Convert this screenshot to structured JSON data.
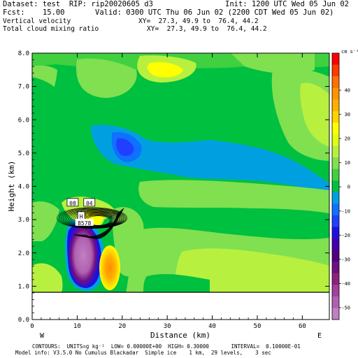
{
  "header": {
    "dataset": "Dataset: test  RIP: rip20020605 d3",
    "init": "Init: 1200 UTC Wed 05 Jun 02",
    "fcst": "Fcst:    15.00",
    "valid": "Valid: 0300 UTC Thu 06 Jun 02 (2200 CDT Wed 05 Jun 02)",
    "field1": "Vertical velocity",
    "field1_xy": "XY=  27.3, 49.9 to  76.4, 44.2",
    "field2": "Total cloud mixing ratio",
    "field2_xy": "XY=  27.3, 49.9 to  76.4, 44.2"
  },
  "chart_data": {
    "type": "heatmap",
    "xlabel": "Distance (km)",
    "ylabel": "Height (km)",
    "xlim": [
      0,
      66
    ],
    "ylim": [
      0,
      8
    ],
    "x_ticks": [
      "0",
      "10",
      "20",
      "30",
      "40",
      "50",
      "60"
    ],
    "y_ticks": [
      "0.0",
      "1.0",
      "2.0",
      "3.0",
      "4.0",
      "5.0",
      "6.0",
      "7.0",
      "8.0"
    ],
    "left_end_label": "W",
    "right_end_label": "E",
    "colorbar": {
      "unit": "cm s⁻¹",
      "tick_labels": [
        "40",
        "30",
        "20",
        "10",
        "0",
        "-10",
        "-20",
        "-30",
        "-40",
        "-50"
      ],
      "colors": [
        "#ff0000",
        "#ff3a00",
        "#ff7000",
        "#ff9400",
        "#ffb000",
        "#ffd200",
        "#ffff00",
        "#e0ff10",
        "#b8f040",
        "#80e050",
        "#40d040",
        "#00c040",
        "#00a0e0",
        "#1070ff",
        "#2040ff",
        "#2010e0",
        "#4000b0",
        "#500080",
        "#701080",
        "#902080",
        "#a040a0",
        "#b060b0",
        "#c080c0"
      ]
    },
    "annotations": [
      {
        "text": "08",
        "x": 9.0,
        "y": 3.5
      },
      {
        "text": "04",
        "x": 12.7,
        "y": 3.5
      },
      {
        "text": "H",
        "x": 10.9,
        "y": 3.1
      },
      {
        "text": "8578",
        "x": 11.6,
        "y": 2.9
      }
    ]
  },
  "footer": {
    "contours": "CONTOURS:  UNITS=g kg⁻¹  LOW= 0.00000E+00  HIGH= 0.30000       INTERVAL=  0.10000E-01",
    "model": "Model info: V3.5.0 No Cumulus Blackadar  Simple ice    1 km,  29 levels,    3 sec"
  }
}
